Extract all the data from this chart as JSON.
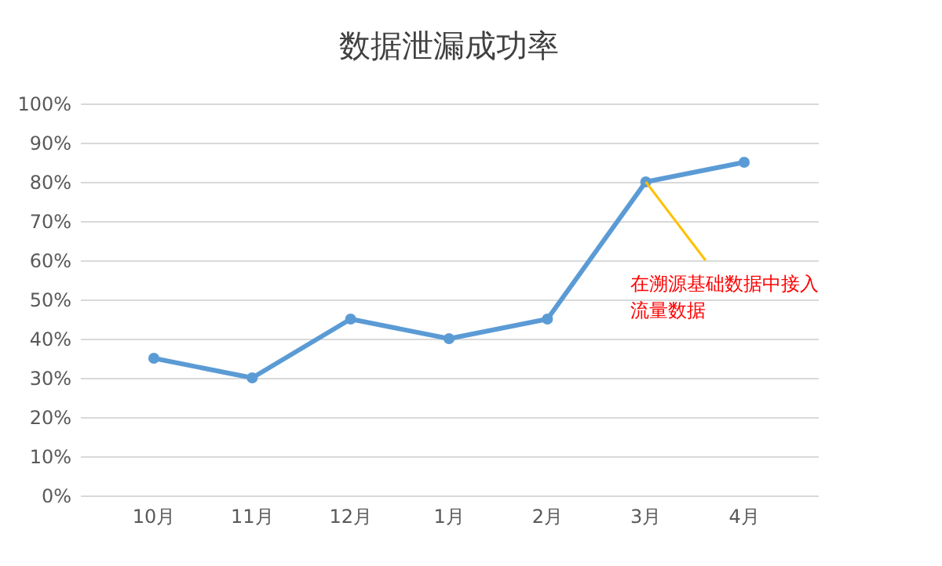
{
  "chart_data": {
    "type": "line",
    "title": "数据泄漏成功率",
    "categories": [
      "10月",
      "11月",
      "12月",
      "1月",
      "2月",
      "3月",
      "4月"
    ],
    "series": [
      {
        "color": "#5b9bd5",
        "values": [
          35,
          30,
          45,
          40,
          45,
          80,
          85
        ]
      }
    ],
    "ylim": [
      0,
      100
    ],
    "yticks": [
      {
        "value": 0,
        "label": "0%"
      },
      {
        "value": 10,
        "label": "10%"
      },
      {
        "value": 20,
        "label": "20%"
      },
      {
        "value": 30,
        "label": "30%"
      },
      {
        "value": 40,
        "label": "40%"
      },
      {
        "value": 50,
        "label": "50%"
      },
      {
        "value": 60,
        "label": "60%"
      },
      {
        "value": 70,
        "label": "70%"
      },
      {
        "value": 80,
        "label": "80%"
      },
      {
        "value": 90,
        "label": "90%"
      },
      {
        "value": 100,
        "label": "100%"
      }
    ],
    "grid": "y",
    "marker": "circle",
    "line_style": "solid",
    "annotations": [
      {
        "text": "在溯源基础数据中接入流量数据",
        "x": "3月",
        "y": 80
      }
    ]
  }
}
